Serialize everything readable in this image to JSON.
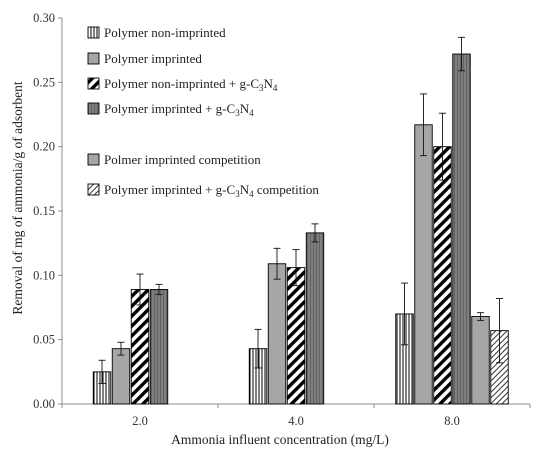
{
  "chart_data": {
    "type": "bar",
    "xlabel": "Ammonia influent concentration (mg/L)",
    "ylabel": "Removal of mg of ammonia/g of adsorbent",
    "ylim": [
      0,
      0.3
    ],
    "yticks": [
      "0.00",
      "0.05",
      "0.10",
      "0.15",
      "0.20",
      "0.25",
      "0.30"
    ],
    "categories": [
      "2.0",
      "4.0",
      "8.0"
    ],
    "legend_position": "top-left",
    "grid": false,
    "series": [
      {
        "name": "Polymer non-imprinted",
        "pattern": "vlines",
        "values": [
          0.025,
          0.043,
          0.07
        ],
        "errors": [
          0.009,
          0.015,
          0.024
        ]
      },
      {
        "name": "Polymer imprinted",
        "pattern": "grey",
        "values": [
          0.043,
          0.109,
          0.217
        ],
        "errors": [
          0.005,
          0.012,
          0.024
        ]
      },
      {
        "name": "Polymer non-imprinted + g-C3N4",
        "pattern": "diag-bold",
        "values": [
          0.089,
          0.106,
          0.2
        ],
        "errors": [
          0.012,
          0.014,
          0.026
        ]
      },
      {
        "name": "Polymer imprinted + g-C3N4",
        "pattern": "darkgrey-lines",
        "values": [
          0.089,
          0.133,
          0.272
        ],
        "errors": [
          0.004,
          0.007,
          0.013
        ]
      },
      {
        "name": "Polmer imprinted competition",
        "pattern": "grey",
        "values": [
          null,
          null,
          0.068
        ],
        "errors": [
          null,
          null,
          0.003
        ]
      },
      {
        "name": "Polymer imprinted + g-C3N4 competition",
        "pattern": "diag-thin",
        "values": [
          null,
          null,
          0.057
        ],
        "errors": [
          null,
          null,
          0.025
        ]
      }
    ],
    "colors": {
      "grey": "#a6a6a6",
      "dark_grey": "#7f7f7f",
      "axis": "#8c8c8c",
      "text": "#222222"
    }
  }
}
